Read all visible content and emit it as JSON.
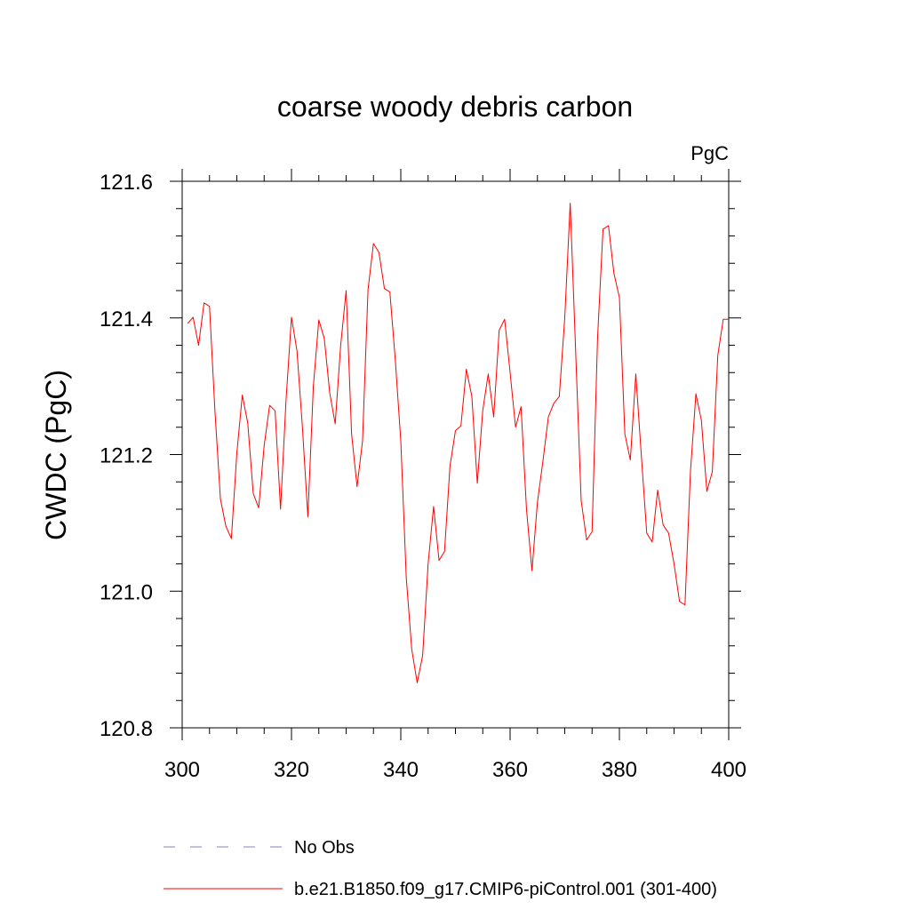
{
  "chart_data": {
    "type": "line",
    "title": "coarse woody debris carbon",
    "units_label": "PgC",
    "ylabel": "CWDC  (PgC)",
    "xlabel": "",
    "xlim": [
      300,
      400
    ],
    "ylim": [
      120.8,
      121.6
    ],
    "x_ticks": [
      "300",
      "320",
      "340",
      "360",
      "380",
      "400"
    ],
    "y_ticks": [
      "120.8",
      "121.0",
      "121.2",
      "121.4",
      "121.6"
    ],
    "legend": [
      {
        "label": "No Obs",
        "color": "#8080c0",
        "style": "dashed"
      },
      {
        "label": "b.e21.B1850.f09_g17.CMIP6-piControl.001 (301-400)",
        "color": "#ff0000",
        "style": "solid"
      }
    ],
    "series": [
      {
        "name": "b.e21.B1850.f09_g17.CMIP6-piControl.001 (301-400)",
        "color": "#ff0000",
        "x_start": 301,
        "values": [
          121.392,
          121.401,
          121.36,
          121.422,
          121.417,
          121.263,
          121.135,
          121.095,
          121.077,
          121.202,
          121.287,
          121.246,
          121.143,
          121.122,
          121.213,
          121.272,
          121.264,
          121.12,
          121.279,
          121.401,
          121.352,
          121.24,
          121.109,
          121.3,
          121.397,
          121.37,
          121.29,
          121.245,
          121.36,
          121.44,
          121.23,
          121.153,
          121.22,
          121.441,
          121.509,
          121.496,
          121.443,
          121.438,
          121.338,
          121.22,
          121.02,
          120.915,
          120.866,
          120.906,
          121.04,
          121.124,
          121.045,
          121.058,
          121.183,
          121.235,
          121.242,
          121.325,
          121.285,
          121.158,
          121.265,
          121.318,
          121.255,
          121.382,
          121.398,
          121.32,
          121.24,
          121.27,
          121.12,
          121.03,
          121.13,
          121.19,
          121.255,
          121.275,
          121.285,
          121.4,
          121.568,
          121.35,
          121.133,
          121.075,
          121.087,
          121.37,
          121.53,
          121.535,
          121.465,
          121.43,
          121.23,
          121.192,
          121.318,
          121.2,
          121.085,
          121.072,
          121.148,
          121.097,
          121.085,
          121.04,
          120.985,
          120.98,
          121.175,
          121.289,
          121.25,
          121.146,
          121.175,
          121.345,
          121.398,
          121.398
        ]
      }
    ]
  }
}
